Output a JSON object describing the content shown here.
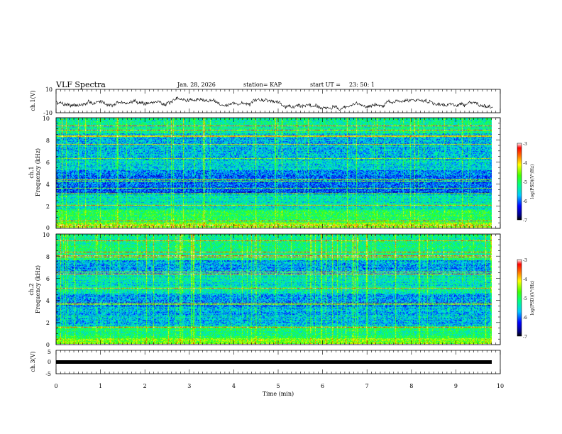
{
  "header": {
    "title": "VLF Spectra",
    "date": "Jan. 28, 2026",
    "station": "station= KAP",
    "start": "start UT =",
    "start_time": "23: 50: 1"
  },
  "chart_data": [
    {
      "id": "ch1_wave",
      "type": "line",
      "ylabel": "ch.1(V)",
      "ylim": [
        -10,
        10
      ],
      "yticks": [
        "10",
        "-10"
      ],
      "xlim": [
        0,
        10
      ],
      "data_extent_min": 9.83
    },
    {
      "id": "ch1_spec",
      "type": "heatmap",
      "ylabel_line1": "ch.1",
      "ylabel_line2": "Frequency (kHz)",
      "ylim": [
        0,
        10
      ],
      "yticks": [
        "0",
        "2",
        "4",
        "6",
        "8",
        "10"
      ],
      "xlim": [
        0,
        10
      ],
      "colorbar": {
        "label": "log(PSD)(V²/Hz)",
        "range": [
          -7,
          -3
        ],
        "ticks": [
          "-3",
          "-4",
          "-5",
          "-6",
          "-7"
        ]
      }
    },
    {
      "id": "ch2_spec",
      "type": "heatmap",
      "ylabel_line1": "ch.2",
      "ylabel_line2": "Frequency (kHz)",
      "ylim": [
        0,
        10
      ],
      "yticks": [
        "0",
        "2",
        "4",
        "6",
        "8",
        "10"
      ],
      "xlim": [
        0,
        10
      ],
      "colorbar": {
        "label": "log(PSD)(V²/Hz)",
        "range": [
          -7,
          -3
        ],
        "ticks": [
          "-3",
          "-4",
          "-5",
          "-6",
          "-7"
        ]
      }
    },
    {
      "id": "ch3_wave",
      "type": "line",
      "ylabel": "ch.3(V)",
      "ylim": [
        -5,
        5
      ],
      "yticks": [
        "5",
        "0",
        "-5"
      ],
      "xlim": [
        0,
        10
      ],
      "xlabel": "Time (min)",
      "xticks": [
        "0",
        "1",
        "2",
        "3",
        "4",
        "5",
        "6",
        "7",
        "8",
        "9",
        "10"
      ]
    }
  ]
}
